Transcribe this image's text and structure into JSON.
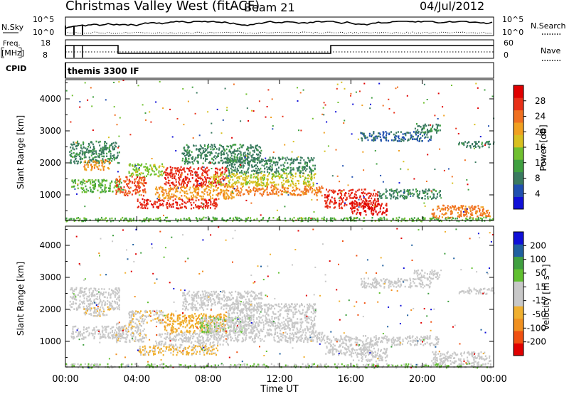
{
  "header": {
    "station": "Christmas Valley West (fitACF)",
    "beam": "Beam 21",
    "date": "04/Jul/2012"
  },
  "strip_panels": {
    "nsky_label": "N.Sky",
    "nsky_ticks": [
      "10^5",
      "10^0"
    ],
    "nsearch_label": "N.Search",
    "nsearch_ticks": [
      "10^5",
      "10^0"
    ],
    "freq_label_1": "Freq.",
    "freq_label_2": "[MHz]",
    "freq_ticks": [
      "18",
      "8"
    ],
    "nave_label": "Nave",
    "nave_ticks": [
      "60",
      "0"
    ],
    "cpid_label": "CPID",
    "cpid_value": "themis 3300 IF"
  },
  "colors": {
    "power": [
      "#1010d8",
      "#2050b0",
      "#3a7a60",
      "#40a040",
      "#70c030",
      "#d8c020",
      "#f0a020",
      "#f07020",
      "#e83018",
      "#e00000"
    ],
    "velocity": [
      "#e00000",
      "#f05010",
      "#f09020",
      "#f0b030",
      "#c8c8c8",
      "#c8c8c8",
      "#60c030",
      "#40a040",
      "#2060a0",
      "#1010d8"
    ]
  },
  "chart_data": [
    {
      "type": "heatmap",
      "name": "power",
      "ylabel": "Slant Range [km]",
      "yticks": [
        1000,
        2000,
        3000,
        4000
      ],
      "ylim": [
        200,
        4600
      ],
      "xlim": [
        0,
        24
      ],
      "colorbar": {
        "label": "Power [dB]",
        "ticks": [
          "4",
          "8",
          "12",
          "16",
          "20",
          "24",
          "28"
        ],
        "range": [
          0,
          30
        ]
      },
      "regions": [
        {
          "x": [
            0.2,
            3.0
          ],
          "y": [
            2000,
            2700
          ],
          "v": 8
        },
        {
          "x": [
            0.3,
            3.2
          ],
          "y": [
            1100,
            1500
          ],
          "v": 12
        },
        {
          "x": [
            1.0,
            2.5
          ],
          "y": [
            1800,
            2100
          ],
          "v": 20
        },
        {
          "x": [
            2.8,
            4.5
          ],
          "y": [
            1000,
            1600
          ],
          "v": 24
        },
        {
          "x": [
            3.5,
            5.5
          ],
          "y": [
            1600,
            2000
          ],
          "v": 14
        },
        {
          "x": [
            4.0,
            8.5
          ],
          "y": [
            600,
            900
          ],
          "v": 26
        },
        {
          "x": [
            5.0,
            9.5
          ],
          "y": [
            900,
            1300
          ],
          "v": 20
        },
        {
          "x": [
            5.5,
            9.0
          ],
          "y": [
            1300,
            1900
          ],
          "v": 26
        },
        {
          "x": [
            6.5,
            11.0
          ],
          "y": [
            2000,
            2600
          ],
          "v": 8
        },
        {
          "x": [
            8.0,
            14.0
          ],
          "y": [
            1300,
            1700
          ],
          "v": 16
        },
        {
          "x": [
            9.0,
            14.0
          ],
          "y": [
            1700,
            2200
          ],
          "v": 8
        },
        {
          "x": [
            9.5,
            14.5
          ],
          "y": [
            1000,
            1300
          ],
          "v": 22
        },
        {
          "x": [
            14.5,
            17.5
          ],
          "y": [
            600,
            1200
          ],
          "v": 26
        },
        {
          "x": [
            16.0,
            18.0
          ],
          "y": [
            400,
            800
          ],
          "v": 28
        },
        {
          "x": [
            17.5,
            21.0
          ],
          "y": [
            900,
            1200
          ],
          "v": 8
        },
        {
          "x": [
            16.5,
            20.5
          ],
          "y": [
            2700,
            3000
          ],
          "v": 6
        },
        {
          "x": [
            19.5,
            21.0
          ],
          "y": [
            2950,
            3250
          ],
          "v": 8
        },
        {
          "x": [
            20.5,
            23.8
          ],
          "y": [
            300,
            700
          ],
          "v": 22
        },
        {
          "x": [
            22.0,
            24.0
          ],
          "y": [
            2500,
            2700
          ],
          "v": 8
        },
        {
          "x": [
            0.0,
            24.0
          ],
          "y": [
            200,
            320
          ],
          "v": 12
        }
      ]
    },
    {
      "type": "heatmap",
      "name": "velocity",
      "ylabel": "Slant Range [km]",
      "xlabel": "Time UT",
      "xticks": [
        "00:00",
        "04:00",
        "08:00",
        "12:00",
        "16:00",
        "20:00",
        "00:00"
      ],
      "yticks": [
        1000,
        2000,
        3000,
        4000
      ],
      "ylim": [
        200,
        4600
      ],
      "xlim": [
        0,
        24
      ],
      "colorbar": {
        "label": "Velocity [m s⁻¹]",
        "ticks": [
          "-200",
          "-100",
          "-50",
          "-15",
          "15",
          "50",
          "100",
          "200"
        ],
        "range": [
          -250,
          250
        ]
      },
      "regions": [
        {
          "x": [
            0.2,
            3.0
          ],
          "y": [
            2000,
            2700
          ],
          "v": 0
        },
        {
          "x": [
            0.3,
            3.2
          ],
          "y": [
            1100,
            1500
          ],
          "v": 0
        },
        {
          "x": [
            1.0,
            2.5
          ],
          "y": [
            1800,
            2100
          ],
          "v": -40
        },
        {
          "x": [
            2.8,
            4.5
          ],
          "y": [
            1000,
            1600
          ],
          "v": -30
        },
        {
          "x": [
            3.5,
            5.5
          ],
          "y": [
            1600,
            2000
          ],
          "v": -40
        },
        {
          "x": [
            4.0,
            8.5
          ],
          "y": [
            600,
            900
          ],
          "v": -60
        },
        {
          "x": [
            5.0,
            9.5
          ],
          "y": [
            900,
            1300
          ],
          "v": 0
        },
        {
          "x": [
            5.5,
            9.0
          ],
          "y": [
            1300,
            1900
          ],
          "v": -80
        },
        {
          "x": [
            7.5,
            10.5
          ],
          "y": [
            1300,
            1800
          ],
          "v": 40
        },
        {
          "x": [
            6.5,
            11.0
          ],
          "y": [
            2000,
            2600
          ],
          "v": 0
        },
        {
          "x": [
            8.0,
            14.0
          ],
          "y": [
            1300,
            1700
          ],
          "v": 0
        },
        {
          "x": [
            9.0,
            14.0
          ],
          "y": [
            1700,
            2200
          ],
          "v": 0
        },
        {
          "x": [
            9.5,
            14.5
          ],
          "y": [
            1000,
            1300
          ],
          "v": 0
        },
        {
          "x": [
            14.5,
            17.5
          ],
          "y": [
            600,
            1200
          ],
          "v": 0
        },
        {
          "x": [
            16.0,
            18.0
          ],
          "y": [
            400,
            800
          ],
          "v": 0
        },
        {
          "x": [
            17.5,
            21.0
          ],
          "y": [
            900,
            1200
          ],
          "v": 0
        },
        {
          "x": [
            16.5,
            20.5
          ],
          "y": [
            2700,
            3000
          ],
          "v": 0
        },
        {
          "x": [
            19.5,
            21.0
          ],
          "y": [
            2950,
            3250
          ],
          "v": 0
        },
        {
          "x": [
            20.5,
            23.8
          ],
          "y": [
            300,
            700
          ],
          "v": 0
        },
        {
          "x": [
            22.0,
            24.0
          ],
          "y": [
            2500,
            2700
          ],
          "v": 0
        },
        {
          "x": [
            0.0,
            24.0
          ],
          "y": [
            200,
            320
          ],
          "v": 45
        }
      ]
    }
  ]
}
